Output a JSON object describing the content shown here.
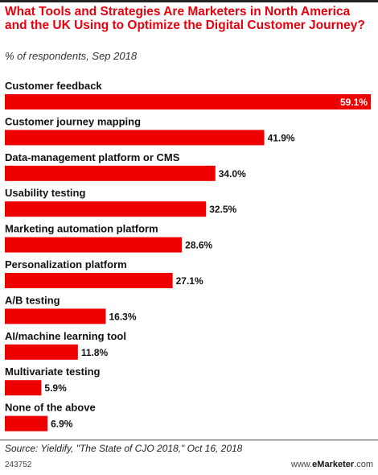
{
  "header": {
    "title": "What Tools and Strategies Are Marketers in North America and the UK Using to Optimize the Digital Customer Journey?",
    "subtitle": "% of respondents, Sep 2018"
  },
  "footer": {
    "source": "Source: Yieldify, \"The State of CJO 2018,\" Oct 16, 2018",
    "chart_id": "243752",
    "brand_prefix": "www.",
    "brand_name": "eMarketer",
    "brand_suffix": ".com"
  },
  "colors": {
    "bar": "#ee0000",
    "title": "#e8000d"
  },
  "chart_data": {
    "type": "bar",
    "orientation": "horizontal",
    "title": "What Tools and Strategies Are Marketers in North America and the UK Using to Optimize the Digital Customer Journey?",
    "subtitle": "% of respondents, Sep 2018",
    "categories": [
      "Customer feedback",
      "Customer journey mapping",
      "Data-management platform or CMS",
      "Usability testing",
      "Marketing automation platform",
      "Personalization platform",
      "A/B testing",
      "AI/machine learning tool",
      "Multivariate testing",
      "None of the above"
    ],
    "values": [
      59.1,
      41.9,
      34.0,
      32.5,
      28.6,
      27.1,
      16.3,
      11.8,
      5.9,
      6.9
    ],
    "value_labels": [
      "59.1%",
      "41.9%",
      "34.0%",
      "32.5%",
      "28.6%",
      "27.1%",
      "16.3%",
      "11.8%",
      "5.9%",
      "6.9%"
    ],
    "xlabel": "",
    "ylabel": "",
    "xlim": [
      0,
      59.1
    ],
    "grid": false,
    "legend": "none"
  }
}
